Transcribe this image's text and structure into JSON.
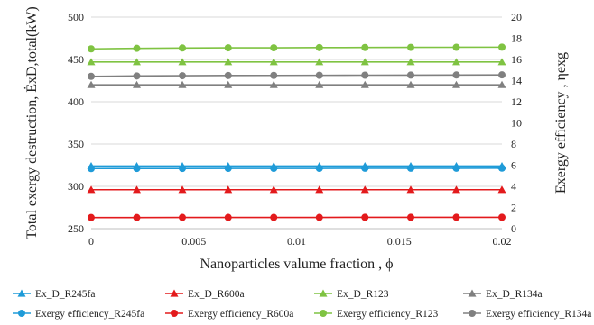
{
  "chart_data": {
    "type": "line",
    "xlabel": "Nanoparticles valume fraction , ϕ",
    "ylabel_left": "Total exergy destruction, ĖxD,total(kW)",
    "ylabel_right": "Exergy efficiency , ηexg",
    "x_ticks": [
      "0",
      "0.005",
      "0.01",
      "0.015",
      "0.02"
    ],
    "y_left_ticks": [
      "250",
      "300",
      "350",
      "400",
      "450",
      "500"
    ],
    "y_right_ticks": [
      "0",
      "2",
      "4",
      "6",
      "8",
      "10",
      "12",
      "14",
      "16",
      "18",
      "20"
    ],
    "xlim": [
      0,
      0.02
    ],
    "ylim_left": [
      250,
      500
    ],
    "ylim_right": [
      0,
      20
    ],
    "grid": "horizontal",
    "legend_position": "bottom",
    "x": [
      0,
      0.00222,
      0.00444,
      0.00667,
      0.00889,
      0.01111,
      0.01333,
      0.01556,
      0.01778,
      0.02
    ],
    "series": [
      {
        "name": "Ex_D_R245fa",
        "axis": "left",
        "marker": "triangle",
        "color": "#1f9bd8",
        "values": [
          324,
          324,
          324,
          324,
          324,
          324,
          324,
          324,
          324,
          324
        ]
      },
      {
        "name": "Ex_D_R600a",
        "axis": "left",
        "marker": "triangle",
        "color": "#e31a1c",
        "values": [
          296,
          296,
          296,
          296,
          296,
          296,
          296,
          296,
          296,
          296
        ]
      },
      {
        "name": "Ex_D_R123",
        "axis": "left",
        "marker": "triangle",
        "color": "#7fc342",
        "values": [
          447,
          447,
          447,
          447,
          447,
          447,
          447,
          447,
          447,
          447
        ]
      },
      {
        "name": "Ex_D_R134a",
        "axis": "left",
        "marker": "triangle",
        "color": "#808080",
        "values": [
          420,
          420,
          420,
          420,
          420,
          420,
          420,
          420,
          420,
          420
        ]
      },
      {
        "name": "Exergy efficiency_R245fa",
        "axis": "right",
        "marker": "circle",
        "color": "#1f9bd8",
        "values": [
          5.68,
          5.69,
          5.69,
          5.7,
          5.7,
          5.7,
          5.71,
          5.71,
          5.71,
          5.72
        ]
      },
      {
        "name": "Exergy efficiency_R600a",
        "axis": "right",
        "marker": "circle",
        "color": "#e31a1c",
        "values": [
          1.05,
          1.05,
          1.06,
          1.06,
          1.06,
          1.06,
          1.07,
          1.07,
          1.07,
          1.07
        ]
      },
      {
        "name": "Exergy efficiency_R123",
        "axis": "right",
        "marker": "circle",
        "color": "#7fc342",
        "values": [
          17.0,
          17.05,
          17.08,
          17.1,
          17.1,
          17.12,
          17.13,
          17.14,
          17.15,
          17.16
        ]
      },
      {
        "name": "Exergy efficiency_R134a",
        "axis": "right",
        "marker": "circle",
        "color": "#808080",
        "values": [
          14.4,
          14.44,
          14.46,
          14.48,
          14.49,
          14.5,
          14.51,
          14.52,
          14.53,
          14.54
        ]
      }
    ]
  }
}
